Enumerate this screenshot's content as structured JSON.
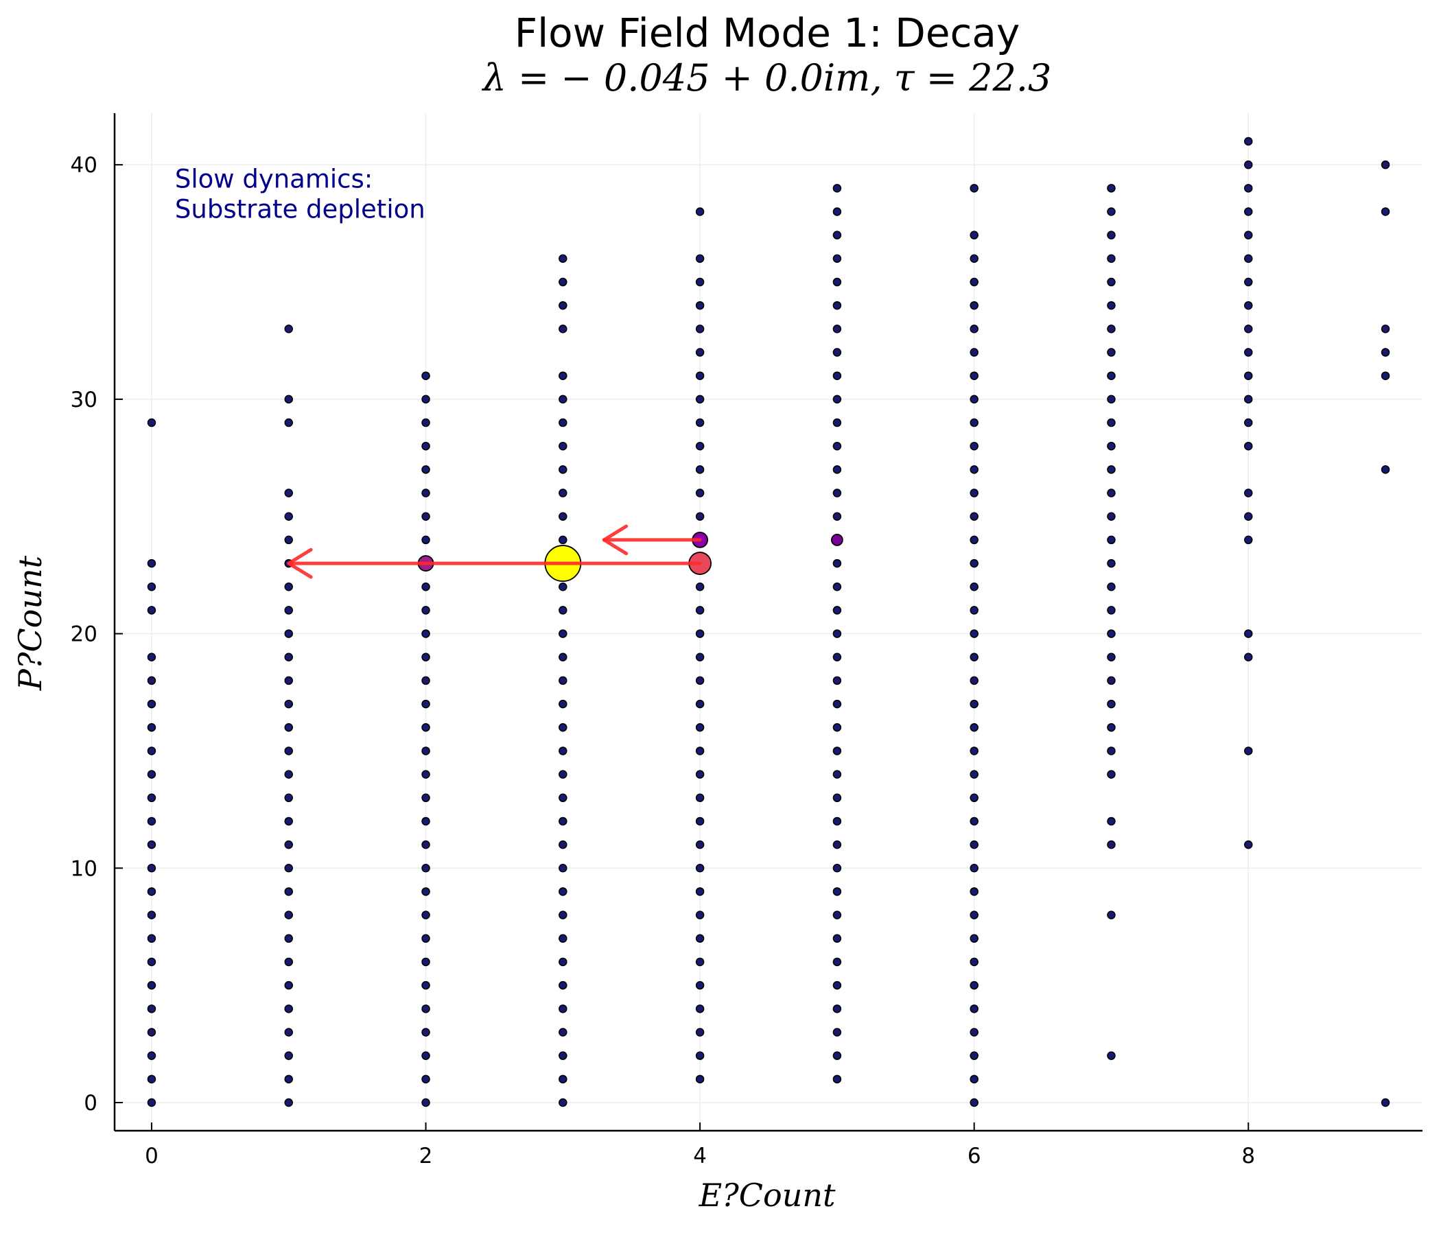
{
  "chart_data": {
    "type": "scatter",
    "title": "Flow Field Mode 1: Decay",
    "subtitle": "λ = − 0.045 + 0.0im, τ = 22.3",
    "xlabel": "E?Count",
    "ylabel": "P?Count",
    "xlim": [
      -0.27,
      9.27
    ],
    "ylim": [
      -1.2,
      42.2
    ],
    "xticks": [
      0,
      2,
      4,
      6,
      8
    ],
    "yticks": [
      0,
      10,
      20,
      30,
      40
    ],
    "grid": true,
    "legend": "none",
    "colors": {
      "point": "#191970",
      "point_edge": "#000000",
      "arrow": "#ff2a2a",
      "annotation": "#00008b",
      "axis": "#000000",
      "grid": "#ededed"
    },
    "annotation": {
      "lines": [
        "Slow dynamics:",
        "Substrate depletion"
      ],
      "x": 0.17,
      "y": 39.4
    },
    "columns": [
      {
        "x": 0,
        "y": [
          0,
          1,
          2,
          3,
          4,
          5,
          6,
          7,
          8,
          9,
          10,
          11,
          12,
          13,
          14,
          15,
          16,
          17,
          18,
          19,
          21,
          22,
          23,
          29
        ]
      },
      {
        "x": 1,
        "y": [
          0,
          1,
          2,
          3,
          4,
          5,
          6,
          7,
          8,
          9,
          10,
          11,
          12,
          13,
          14,
          15,
          16,
          17,
          18,
          19,
          20,
          21,
          22,
          23,
          24,
          25,
          26,
          29,
          30,
          33
        ]
      },
      {
        "x": 2,
        "y": [
          0,
          1,
          2,
          3,
          4,
          5,
          6,
          7,
          8,
          9,
          10,
          11,
          12,
          13,
          14,
          15,
          16,
          17,
          18,
          19,
          20,
          21,
          22,
          23,
          24,
          25,
          26,
          27,
          28,
          29,
          30,
          31
        ]
      },
      {
        "x": 3,
        "y": [
          0,
          1,
          2,
          3,
          4,
          5,
          6,
          7,
          8,
          9,
          10,
          11,
          12,
          13,
          14,
          15,
          16,
          17,
          18,
          19,
          20,
          21,
          22,
          24,
          25,
          26,
          27,
          28,
          29,
          30,
          31,
          33,
          34,
          35,
          36
        ]
      },
      {
        "x": 4,
        "y": [
          1,
          2,
          3,
          4,
          5,
          6,
          7,
          8,
          9,
          10,
          11,
          12,
          13,
          14,
          15,
          16,
          17,
          18,
          19,
          20,
          21,
          22,
          25,
          26,
          27,
          28,
          29,
          30,
          31,
          32,
          33,
          34,
          35,
          36,
          38
        ]
      },
      {
        "x": 5,
        "y": [
          1,
          2,
          3,
          4,
          5,
          6,
          7,
          8,
          9,
          10,
          11,
          12,
          13,
          14,
          15,
          16,
          17,
          18,
          19,
          20,
          21,
          22,
          23,
          25,
          26,
          27,
          28,
          29,
          30,
          31,
          32,
          33,
          34,
          35,
          36,
          37,
          38,
          39
        ]
      },
      {
        "x": 6,
        "y": [
          0,
          1,
          2,
          3,
          4,
          5,
          6,
          7,
          8,
          9,
          10,
          11,
          12,
          13,
          14,
          15,
          16,
          17,
          18,
          19,
          20,
          21,
          22,
          23,
          24,
          25,
          26,
          27,
          28,
          29,
          30,
          31,
          32,
          33,
          34,
          35,
          36,
          37,
          39
        ]
      },
      {
        "x": 7,
        "y": [
          2,
          8,
          11,
          12,
          14,
          15,
          16,
          17,
          18,
          19,
          20,
          21,
          22,
          23,
          24,
          25,
          26,
          27,
          28,
          29,
          30,
          31,
          32,
          33,
          34,
          35,
          36,
          37,
          38,
          39
        ]
      },
      {
        "x": 8,
        "y": [
          11,
          15,
          19,
          20,
          24,
          25,
          26,
          28,
          29,
          30,
          31,
          32,
          33,
          34,
          35,
          36,
          37,
          38,
          39,
          40,
          41
        ]
      },
      {
        "x": 9,
        "y": [
          0,
          27,
          31,
          32,
          33,
          38,
          40
        ]
      }
    ],
    "highlights": [
      {
        "x": 3,
        "y": 23,
        "size": "large",
        "color": "#ffff00"
      },
      {
        "x": 4,
        "y": 23,
        "size": "medium",
        "color": "#e8495a"
      },
      {
        "x": 4,
        "y": 24,
        "size": "small",
        "color": "#8b00a8"
      },
      {
        "x": 2,
        "y": 23,
        "size": "small",
        "color": "#9c1f8a"
      },
      {
        "x": 5,
        "y": 24,
        "size": "tiny",
        "color": "#7a0098"
      }
    ],
    "arrows": [
      {
        "from": [
          4,
          23
        ],
        "to": [
          1,
          23
        ]
      },
      {
        "from": [
          4,
          24
        ],
        "to": [
          3.3,
          24
        ]
      }
    ]
  }
}
